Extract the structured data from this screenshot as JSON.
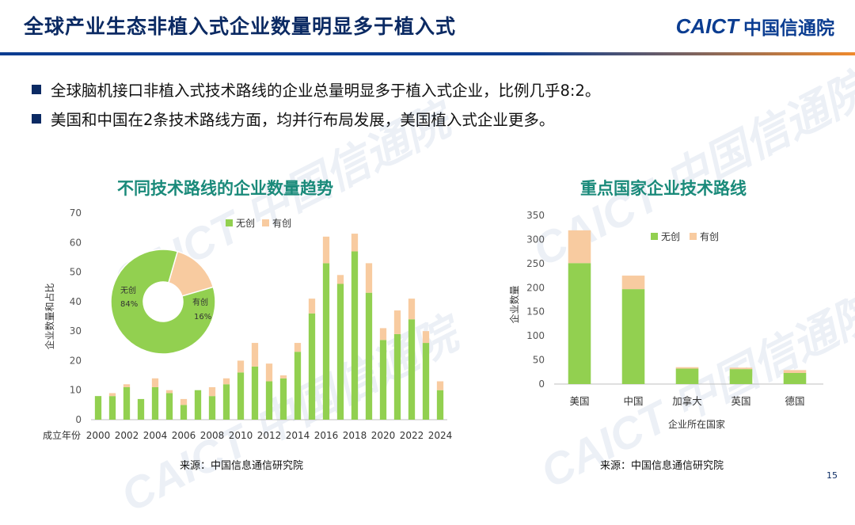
{
  "header": {
    "title": "全球产业生态非植入式企业数量明显多于植入式",
    "logo_en": "CAICT",
    "logo_cn": "中国信通院"
  },
  "bullets": [
    "全球脑机接口非植入式技术路线的企业总量明显多于植入式企业，比例几乎8:2。",
    "美国和中国在2条技术路线方面，均并行布局发展，美国植入式企业更多。"
  ],
  "watermark_text": "CAICT 中国信通院",
  "page_number": "15",
  "colors": {
    "noninvasive": "#92d050",
    "invasive": "#f8cba0",
    "title_teal": "#1a8a7a",
    "navy": "#0b2a63"
  },
  "chart_data": [
    {
      "type": "bar",
      "stacked": true,
      "title": "不同技术路线的企业数量趋势",
      "xlabel": "成立年份",
      "ylabel": "企业数量和占比",
      "ylim": [
        0,
        70
      ],
      "yticks": [
        0,
        10,
        20,
        30,
        40,
        50,
        60,
        70
      ],
      "categories": [
        "2000",
        "2001",
        "2002",
        "2003",
        "2004",
        "2005",
        "2006",
        "2007",
        "2008",
        "2009",
        "2010",
        "2011",
        "2012",
        "2013",
        "2014",
        "2015",
        "2016",
        "2017",
        "2018",
        "2019",
        "2020",
        "2021",
        "2022",
        "2023",
        "2024"
      ],
      "xtick_labels": [
        "2000",
        "2002",
        "2004",
        "2006",
        "2008",
        "2010",
        "2012",
        "2014",
        "2016",
        "2018",
        "2020",
        "2022",
        "2024"
      ],
      "series": [
        {
          "name": "无创",
          "values": [
            8,
            8,
            11,
            7,
            11,
            9,
            5,
            10,
            8,
            12,
            16,
            18,
            13,
            14,
            23,
            36,
            53,
            46,
            57,
            43,
            27,
            29,
            34,
            26,
            10
          ]
        },
        {
          "name": "有创",
          "values": [
            0,
            1,
            1,
            0,
            3,
            1,
            2,
            0,
            3,
            2,
            4,
            8,
            6,
            1,
            3,
            5,
            9,
            3,
            6,
            10,
            4,
            8,
            7,
            4,
            3
          ]
        }
      ],
      "legend": "top",
      "source": "来源：中国信息通信研究院",
      "inset_pie": {
        "type": "pie",
        "slices": [
          {
            "label": "无创",
            "value": 84,
            "text": "84%"
          },
          {
            "label": "有创",
            "value": 16,
            "text": "16%"
          }
        ]
      }
    },
    {
      "type": "bar",
      "stacked": true,
      "title": "重点国家企业技术路线",
      "xlabel": "企业所在国家",
      "ylabel": "企业数量",
      "ylim": [
        0,
        350
      ],
      "yticks": [
        0,
        50,
        100,
        150,
        200,
        250,
        300,
        350
      ],
      "categories": [
        "美国",
        "中国",
        "加拿大",
        "英国",
        "德国"
      ],
      "series": [
        {
          "name": "无创",
          "values": [
            251,
            197,
            32,
            31,
            23
          ]
        },
        {
          "name": "有创",
          "values": [
            68,
            28,
            3,
            3,
            6
          ]
        }
      ],
      "legend": "top",
      "source": "来源：中国信息通信研究院"
    }
  ]
}
